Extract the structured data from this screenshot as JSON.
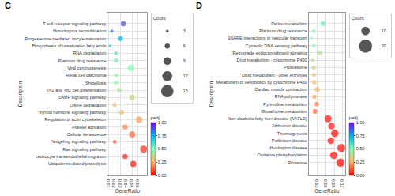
{
  "chart_data": [
    {
      "type": "scatter",
      "title": "C",
      "xlabel": "GeneRatio",
      "ylabel": "Description",
      "categories": [
        "T cell receptor signaling pathway",
        "Homologous recombination",
        "Progesterone-mediated oocyte maturation",
        "Biosynthesis of unsaturated fatty acids",
        "RNA degradation",
        "Platinum drug resistance",
        "Viral carcinogenesis",
        "Renal cell carcinoma",
        "Shigellosis",
        "Th1 and Th2 cell differentiation",
        "cAMP signaling pathway",
        "Lysine degradation",
        "Thyroid hormone signaling pathway",
        "Regulation of actin cytoskeleton",
        "Platelet activation",
        "Cellular senescence",
        "Hedgehog signaling pathway",
        "Ras signaling pathway",
        "Leukocyte transendothelial migration",
        "Ubiquitin mediated proteolysis"
      ],
      "values": [
        0.035,
        0.015,
        0.03,
        0.012,
        0.022,
        0.022,
        0.048,
        0.022,
        0.022,
        0.028,
        0.05,
        0.02,
        0.032,
        0.062,
        0.038,
        0.05,
        0.02,
        0.07,
        0.038,
        0.052
      ],
      "size": [
        8,
        3,
        7,
        2,
        4,
        5,
        13,
        5,
        5,
        6,
        10,
        5,
        7,
        13,
        8,
        11,
        4,
        15,
        8,
        11
      ],
      "color_values": [
        0.9,
        0.85,
        0.75,
        0.7,
        0.6,
        0.55,
        0.5,
        0.48,
        0.45,
        0.42,
        0.35,
        0.3,
        0.28,
        0.22,
        0.18,
        0.14,
        0.1,
        0.05,
        0.04,
        0.02
      ],
      "xlim": [
        0.008,
        0.076
      ],
      "xticks": [
        0.01,
        0.02,
        0.03,
        0.04,
        0.05,
        0.06
      ],
      "grid": true,
      "size_legend": {
        "title": "Count",
        "values": [
          3,
          6,
          9,
          12,
          15
        ]
      },
      "colorbar": {
        "title": "padj",
        "range": [
          0,
          1
        ],
        "ticks": [
          {
            "value": 0,
            "label": "0.00"
          },
          0.25,
          {
            "value": 0.5,
            "label": "0.50"
          },
          0.75,
          {
            "value": 1,
            "label": "1.00"
          }
        ],
        "colorscale": [
          "#ff0000",
          "#ffb462",
          "#80ffb4",
          "#00b4eb",
          "#8000ff"
        ]
      }
    },
    {
      "type": "scatter",
      "title": "D",
      "xlabel": "GeneRatio",
      "ylabel": "Description",
      "categories": [
        "Purine metabolism",
        "Platinum drug resistance",
        "SNARE interactions in vesicular transport",
        "Cytosolic DNA-sensing pathway",
        "Retrograde endocannabinoid signaling",
        "Drug metabolism - cytochrome P450",
        "Proteasome",
        "Drug metabolism - other enzymes",
        "Metabolism of xenobiotics by cytochrome P450",
        "Cardiac muscle contraction",
        "RNA polymerase",
        "Pyrimidine metabolism",
        "Glutathione metabolism",
        "Non-alcoholic fatty liver disease (NAFLD)",
        "Alzheimer disease",
        "Thermogenesis",
        "Parkinson disease",
        "Huntington disease",
        "Oxidative phosphorylation",
        "Ribosome"
      ],
      "values": [
        0.05,
        0.018,
        0.01,
        0.018,
        0.038,
        0.015,
        0.018,
        0.018,
        0.02,
        0.03,
        0.02,
        0.028,
        0.022,
        0.068,
        0.08,
        0.092,
        0.078,
        0.115,
        0.088,
        0.112
      ],
      "size": [
        10,
        5,
        3,
        5,
        10,
        5,
        7,
        7,
        8,
        10,
        7,
        8,
        8,
        20,
        18,
        22,
        18,
        26,
        22,
        28
      ],
      "color_values": [
        0.55,
        0.52,
        0.5,
        0.48,
        0.4,
        0.38,
        0.35,
        0.3,
        0.28,
        0.25,
        0.22,
        0.18,
        0.12,
        0.02,
        0.02,
        0.01,
        0.02,
        0.01,
        0.01,
        0.01
      ],
      "xlim": [
        0.0,
        0.128
      ],
      "xticks": [
        0.03,
        0.06,
        0.09,
        0.12
      ],
      "grid": true,
      "size_legend": {
        "title": "Count",
        "values": [
          10,
          20
        ]
      },
      "colorbar": {
        "title": "padj",
        "range": [
          0,
          1
        ],
        "ticks": [
          {
            "value": 0,
            "label": "0.00"
          },
          0.25,
          {
            "value": 0.5,
            "label": "0.50"
          },
          0.75,
          {
            "value": 1,
            "label": "1.00"
          }
        ],
        "colorscale": [
          "#ff0000",
          "#ffb462",
          "#80ffb4",
          "#00b4eb",
          "#8000ff"
        ]
      }
    }
  ]
}
